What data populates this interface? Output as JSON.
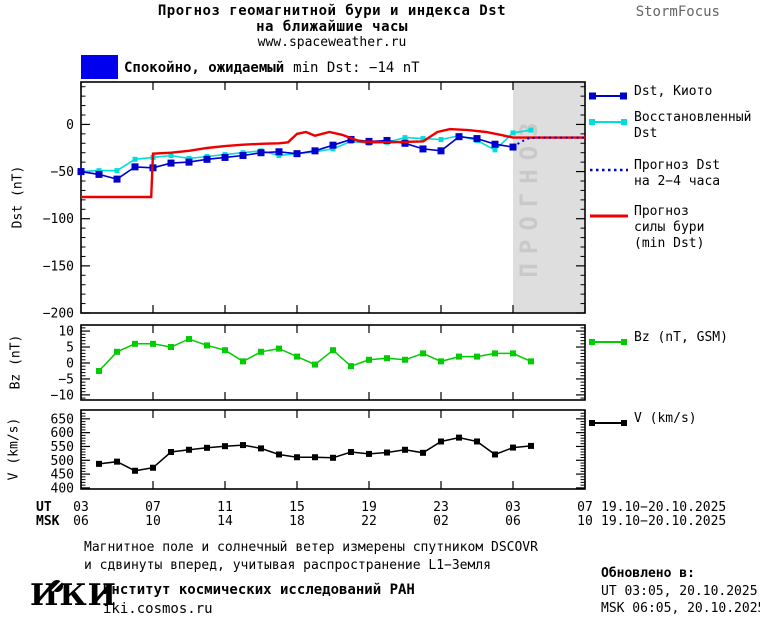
{
  "header": {
    "title_line1": "Прогноз геомагнитной бури и индекса Dst",
    "title_line2": "на ближайшие часы",
    "website": "www.spaceweather.ru",
    "brand": "StormFocus"
  },
  "status_banner": {
    "level_label": "Спокойно, ожидаемый",
    "detail_label": "min Dst: −14 nT",
    "swatch_color": "#0000ee"
  },
  "forecast_overlay": {
    "label": "ПРОГНОЗ",
    "region_color": "#dedede",
    "label_color": "#c9c9c9"
  },
  "legends": {
    "dst_kyoto": {
      "line1": "Dst, Киото"
    },
    "dst_restored": {
      "line1": "Восстановленный",
      "line2": "Dst"
    },
    "dst_forecast": {
      "line1": "Прогноз Dst",
      "line2": "на 2−4 часа"
    },
    "storm_forecast": {
      "line1": "Прогноз",
      "line2": "силы бури",
      "line3": "(min Dst)"
    },
    "bz": {
      "line1": "Bz (nT, GSM)"
    },
    "v": {
      "line1": "V (km/s)"
    }
  },
  "axis": {
    "ut_label": "UT",
    "msk_label": "MSK",
    "ut_hours": [
      "03",
      "07",
      "11",
      "15",
      "19",
      "23",
      "03",
      "07"
    ],
    "msk_hours": [
      "06",
      "10",
      "14",
      "18",
      "22",
      "02",
      "06",
      "10"
    ],
    "date_range_ut": "19.10−20.10.2025",
    "date_range_msk": "19.10−20.10.2025"
  },
  "footer": {
    "note_line1": "Магнитное поле и солнечный ветер измерены спутником DSCOVR",
    "note_line2": "и сдвинуты вперед, учитывая распространение L1−Земля",
    "logo_text": "ИКИ",
    "institute": "Институт космических исследований РАН",
    "site": "iki.cosmos.ru",
    "updated_label": "Обновлено в:",
    "updated_ut": "UT  03:05, 20.10.2025",
    "updated_msk": "MSK 06:05, 20.10.2025"
  },
  "chart_data": [
    {
      "type": "line",
      "ylabel": "Dst (nT)",
      "ylim": [
        -200,
        45
      ],
      "ytick_values": [
        0,
        -50,
        -100,
        -150,
        -200
      ],
      "ytick_labels": [
        "0",
        "−50",
        "−100",
        "−150",
        "−200"
      ],
      "major_step": 50,
      "minor_step": 10,
      "xlim_hours": [
        0,
        28
      ],
      "forecast_start_hour": 24,
      "series": [
        {
          "id": "dst_restored",
          "name": "Восстановленный Dst",
          "color": "#00dddd",
          "lw": 1.6,
          "marker": 5,
          "start_hour": 0,
          "step": 1,
          "values": [
            -50,
            -49,
            -49,
            -37,
            -35,
            -33,
            -36,
            -34,
            -32,
            -30,
            -28,
            -33,
            -31,
            -29,
            -26,
            -18,
            -20,
            -19,
            -14,
            -15,
            -16,
            -12,
            -17,
            -27,
            -9,
            -6
          ]
        },
        {
          "id": "dst_kyoto",
          "name": "Dst, Киото",
          "color": "#0000cc",
          "lw": 1.6,
          "marker": 7,
          "start_hour": 0,
          "step": 1,
          "values": [
            -50,
            -53,
            -58,
            -45,
            -46,
            -41,
            -40,
            -37,
            -35,
            -33,
            -30,
            -29,
            -31,
            -28,
            -22,
            -16,
            -18,
            -17,
            -20,
            -26,
            -28,
            -13,
            -15,
            -21,
            -24
          ]
        },
        {
          "id": "storm_forecast",
          "name": "Прогноз силы бури (min Dst)",
          "color": "#ee0000",
          "lw": 2.4,
          "marker": 0,
          "points": [
            [
              0,
              -77
            ],
            [
              3.9,
              -77
            ],
            [
              4,
              -31
            ],
            [
              5,
              -30
            ],
            [
              6,
              -28
            ],
            [
              7,
              -25
            ],
            [
              8,
              -23
            ],
            [
              9,
              -21.5
            ],
            [
              10,
              -20.5
            ],
            [
              11,
              -20
            ],
            [
              11.5,
              -19
            ],
            [
              12,
              -10
            ],
            [
              12.5,
              -8
            ],
            [
              13,
              -12
            ],
            [
              13.8,
              -8
            ],
            [
              14.5,
              -11
            ],
            [
              15.5,
              -18
            ],
            [
              17,
              -19
            ],
            [
              19,
              -18
            ],
            [
              19.8,
              -8
            ],
            [
              20.5,
              -5
            ],
            [
              21.5,
              -6
            ],
            [
              22.5,
              -8
            ],
            [
              23.3,
              -11
            ],
            [
              24,
              -14
            ],
            [
              28,
              -14
            ]
          ]
        },
        {
          "id": "dst_forecast",
          "name": "Прогноз Dst на 2−4 часа",
          "color": "#0000cc",
          "lw": 2,
          "marker": 0,
          "dash": "2,3.5",
          "points": [
            [
              24,
              -24
            ],
            [
              24.4,
              -19
            ],
            [
              24.8,
              -15
            ],
            [
              25.3,
              -14
            ],
            [
              28,
              -14
            ]
          ]
        }
      ]
    },
    {
      "type": "line",
      "ylabel": "Bz (nT)",
      "ylim": [
        -11.6,
        11.9
      ],
      "ytick_values": [
        10,
        5,
        0,
        -5,
        -10
      ],
      "ytick_labels": [
        "10",
        "5",
        "0",
        "−5",
        "−10"
      ],
      "major_step": 5,
      "minor_step": 1,
      "xlim_hours": [
        0,
        28
      ],
      "series": [
        {
          "id": "bz",
          "name": "Bz (nT, GSM)",
          "color": "#00cc00",
          "lw": 1.5,
          "marker": 6,
          "start_hour": 1,
          "step": 1,
          "values": [
            -2.5,
            3.5,
            6,
            6,
            5,
            7.5,
            5.5,
            4,
            0.5,
            3.5,
            4.5,
            2,
            -0.5,
            4,
            -1,
            1,
            1.5,
            1,
            3,
            0.5,
            2,
            2,
            3,
            3,
            0.5
          ]
        }
      ]
    },
    {
      "type": "line",
      "ylabel": "V (km/s)",
      "ylim": [
        396,
        682
      ],
      "ytick_values": [
        650,
        600,
        550,
        500,
        450,
        400
      ],
      "ytick_labels": [
        "650",
        "600",
        "550",
        "500",
        "450",
        "400"
      ],
      "major_step": 50,
      "minor_step": 10,
      "xlim_hours": [
        0,
        28
      ],
      "series": [
        {
          "id": "v",
          "name": "V (km/s)",
          "color": "#000000",
          "lw": 1.5,
          "marker": 6,
          "start_hour": 1,
          "step": 1,
          "values": [
            487,
            495,
            462,
            473,
            530,
            538,
            545,
            551,
            555,
            543,
            521,
            511,
            511,
            509,
            530,
            523,
            528,
            538,
            527,
            568,
            582,
            568,
            521,
            546,
            552
          ]
        }
      ]
    }
  ]
}
